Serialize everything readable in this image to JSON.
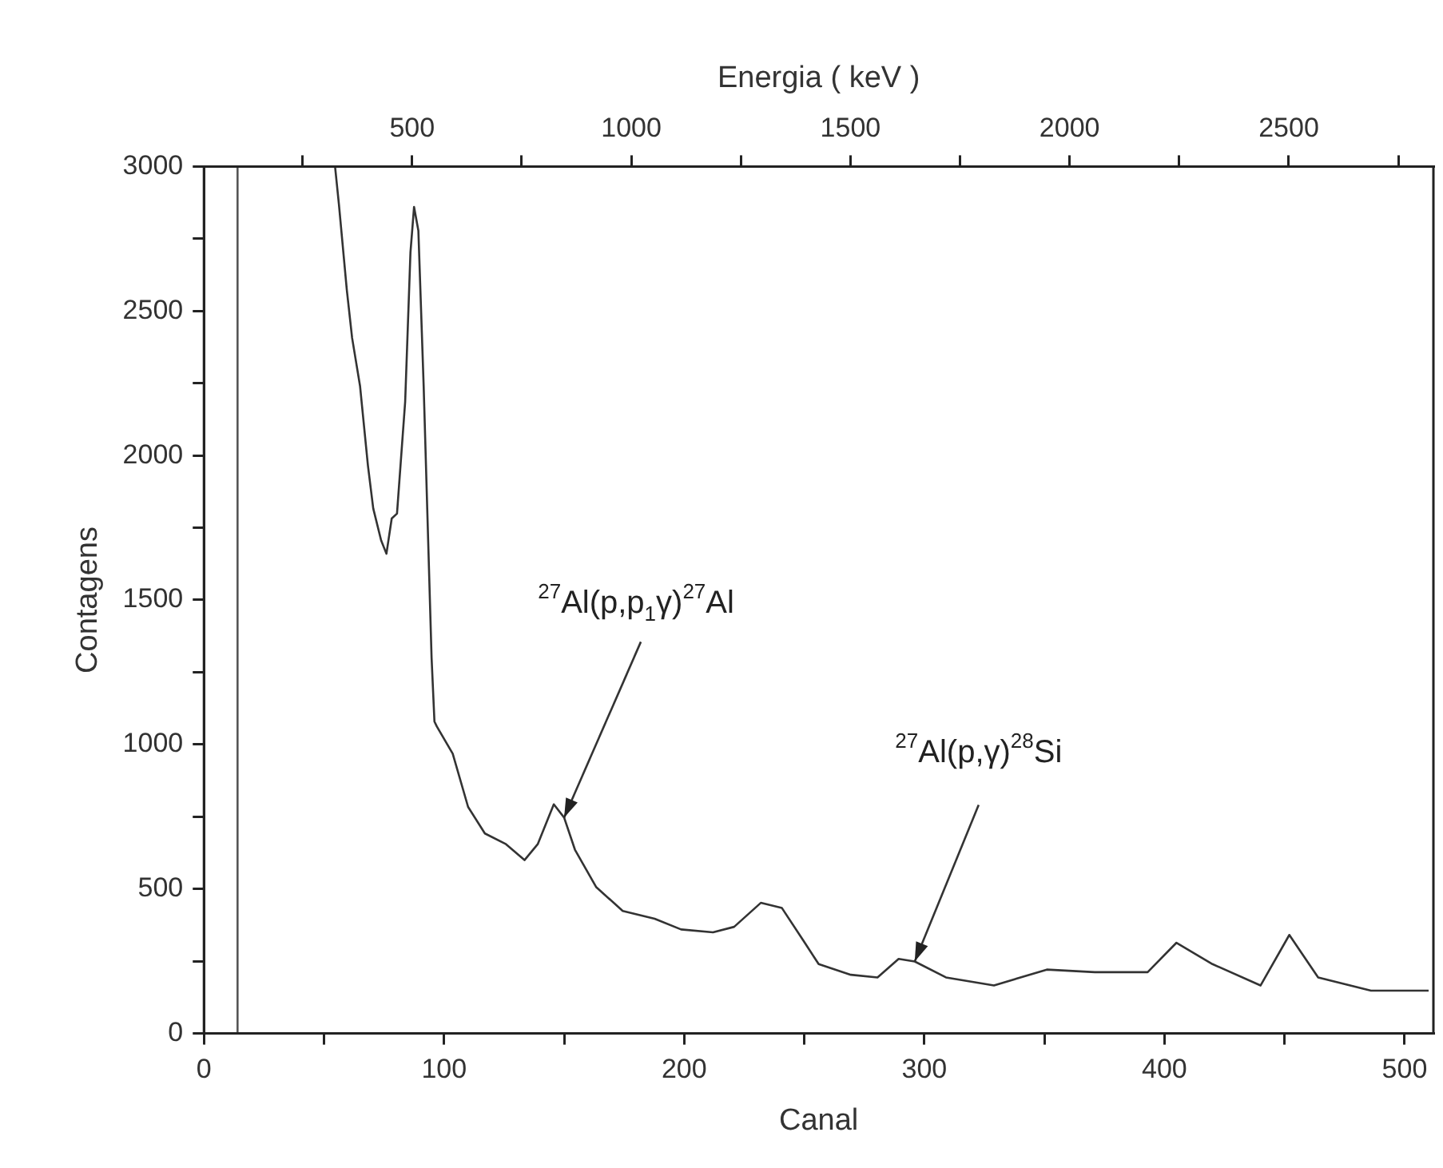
{
  "chart_data": {
    "type": "line",
    "xlabel": "Canal",
    "ylabel": "Contagens",
    "x2label": "Energia ( keV )",
    "x": [
      54.6,
      56.2,
      59.5,
      61.7,
      65,
      68.3,
      70.5,
      73.8,
      76,
      78.2,
      80.4,
      83.8,
      86,
      87.5,
      89.3,
      91.5,
      94.8,
      96,
      97,
      103.6,
      110,
      117,
      125.8,
      133.5,
      139,
      145.7,
      150,
      154.5,
      163.3,
      174.4,
      187.7,
      198.7,
      212,
      220.8,
      231.9,
      240.7,
      249.5,
      256,
      269.4,
      280.5,
      289.3,
      296,
      309,
      329,
      351,
      371,
      393,
      405,
      420,
      440,
      452,
      464,
      486,
      510
    ],
    "series": [
      {
        "color": "#333333",
        "values": [
          3000,
          2870,
          2573,
          2407,
          2241,
          1965,
          1817,
          1706,
          1660,
          1782,
          1799,
          2186,
          2702,
          2860,
          2778,
          2241,
          1300,
          1079,
          1062,
          968,
          784,
          692,
          655,
          600,
          655,
          793,
          747,
          636,
          507,
          424,
          397,
          360,
          350,
          369,
          452,
          434,
          323,
          240,
          203,
          194,
          258,
          249,
          194,
          166,
          221,
          212,
          212,
          314,
          240,
          166,
          341,
          194,
          148,
          148
        ]
      }
    ],
    "xlim": [
      0,
      512
    ],
    "xticks": [
      0,
      {
        "value": 50,
        "label": null
      },
      100,
      {
        "value": 150,
        "label": null
      },
      200,
      {
        "value": 250,
        "label": null
      },
      300,
      {
        "value": 350,
        "label": null
      },
      400,
      {
        "value": 450,
        "label": null
      },
      500
    ],
    "ylim": [
      0,
      3000
    ],
    "yticks": [
      0,
      {
        "value": 250,
        "label": null
      },
      500,
      {
        "value": 750,
        "label": null
      },
      1000,
      {
        "value": 1250,
        "label": null
      },
      1500,
      {
        "value": 1750,
        "label": null
      },
      2000,
      {
        "value": 2250,
        "label": null
      },
      2500,
      {
        "value": 2750,
        "label": null
      },
      3000
    ],
    "x2lim": [
      25,
      2830
    ],
    "x2ticks": [
      {
        "value": 250,
        "label": null
      },
      500,
      {
        "value": 750,
        "label": null
      },
      1000,
      {
        "value": 1250,
        "label": null
      },
      1500,
      {
        "value": 1750,
        "label": null
      },
      2000,
      {
        "value": 2250,
        "label": null
      },
      2500,
      {
        "value": 2750,
        "label": null
      }
    ],
    "ref_lines": [
      {
        "axis": "x",
        "value": 14,
        "color": "#555555"
      }
    ],
    "annotations": [
      {
        "text": "$^{27}$Al(p,p$_{1}$γ)$^{27}$Al",
        "x": 150,
        "y": 747
      },
      {
        "text": "$^{27}$Al(p,γ)$^{28}$Si",
        "x": 296,
        "y": 249
      }
    ],
    "grid": false,
    "legend": false,
    "marker": "none",
    "line_style": "solid"
  }
}
